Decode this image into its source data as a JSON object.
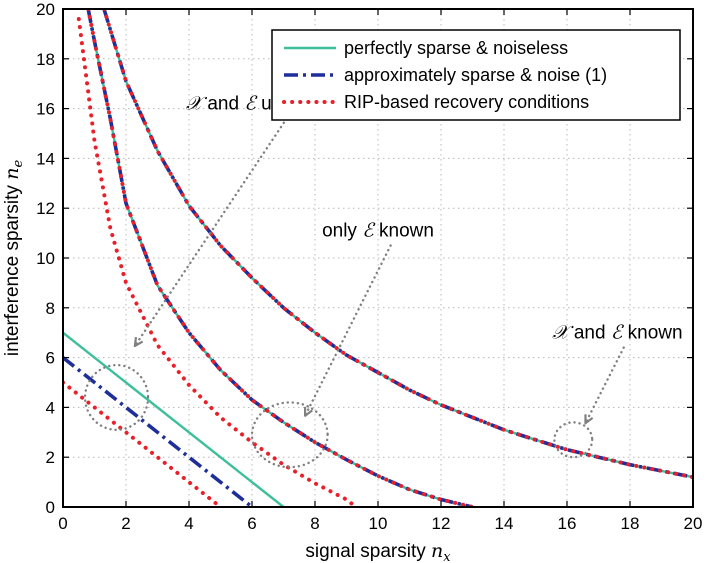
{
  "chart_data": {
    "type": "line",
    "xlabel": "signal sparsity",
    "xlabel_symbol": "n",
    "xlabel_sub": "x",
    "ylabel": "interference sparsity",
    "ylabel_symbol": "n",
    "ylabel_sub": "e",
    "xlim": [
      0,
      20
    ],
    "ylim": [
      0,
      20
    ],
    "xticks": [
      0,
      2,
      4,
      6,
      8,
      10,
      12,
      14,
      16,
      18,
      20
    ],
    "yticks": [
      0,
      2,
      4,
      6,
      8,
      10,
      12,
      14,
      16,
      18,
      20
    ],
    "grid": true,
    "legend_position": "top-right",
    "legend": [
      {
        "label": "perfectly sparse & noiseless",
        "style": "solid",
        "color": "#3cbf9a"
      },
      {
        "label": "approximately sparse & noise (1)",
        "style": "dashdot",
        "color": "#1f2f9a"
      },
      {
        "label": "RIP-based recovery conditions",
        "style": "dotted",
        "color": "#e8202a"
      }
    ],
    "series": [
      {
        "name": "perfectly sparse & noiseless",
        "style": "solid",
        "color": "#3cbf9a",
        "x": [
          0,
          7
        ],
        "y": [
          7,
          0
        ]
      },
      {
        "name": "perfectly sparse & noiseless",
        "style": "solid",
        "color": "#3cbf9a",
        "x": [
          0.8,
          1,
          1.5,
          2,
          3,
          4,
          5,
          6,
          7,
          8,
          9,
          10,
          11,
          12,
          13
        ],
        "y": [
          20,
          18.7,
          15.6,
          12.2,
          8.9,
          7.0,
          5.5,
          4.3,
          3.4,
          2.6,
          1.9,
          1.25,
          0.7,
          0.3,
          0
        ]
      },
      {
        "name": "perfectly sparse & noiseless",
        "style": "solid",
        "color": "#3cbf9a",
        "x": [
          1.3,
          2,
          3,
          4,
          5,
          6,
          7,
          8,
          9,
          10,
          11,
          12,
          13,
          14,
          15,
          16,
          17,
          18,
          19,
          20
        ],
        "y": [
          20,
          17.1,
          14.3,
          12.1,
          10.5,
          9.2,
          8.0,
          7.0,
          6.1,
          5.4,
          4.7,
          4.1,
          3.6,
          3.1,
          2.7,
          2.3,
          2.0,
          1.7,
          1.45,
          1.2
        ]
      },
      {
        "name": "approximately sparse & noise (1)",
        "style": "dashdot",
        "color": "#1f2f9a",
        "x": [
          0,
          6
        ],
        "y": [
          6,
          0
        ]
      },
      {
        "name": "approximately sparse & noise (1)",
        "style": "dashdot",
        "color": "#1f2f9a",
        "x": [
          0.8,
          1,
          1.5,
          2,
          3,
          4,
          5,
          6,
          7,
          8,
          9,
          10,
          11,
          12,
          13
        ],
        "y": [
          20,
          18.7,
          15.6,
          12.2,
          8.9,
          7.0,
          5.5,
          4.3,
          3.4,
          2.6,
          1.9,
          1.25,
          0.7,
          0.3,
          0
        ]
      },
      {
        "name": "approximately sparse & noise (1)",
        "style": "dashdot",
        "color": "#1f2f9a",
        "x": [
          1.3,
          2,
          3,
          4,
          5,
          6,
          7,
          8,
          9,
          10,
          11,
          12,
          13,
          14,
          15,
          16,
          17,
          18,
          19,
          20
        ],
        "y": [
          20,
          17.1,
          14.3,
          12.1,
          10.5,
          9.2,
          8.0,
          7.0,
          6.1,
          5.4,
          4.7,
          4.1,
          3.6,
          3.1,
          2.7,
          2.3,
          2.0,
          1.7,
          1.45,
          1.2
        ]
      },
      {
        "name": "RIP-based recovery conditions",
        "style": "dotted",
        "color": "#e8202a",
        "x": [
          0,
          5
        ],
        "y": [
          5,
          0
        ]
      },
      {
        "name": "RIP-based recovery conditions",
        "style": "dotted",
        "color": "#e8202a",
        "x": [
          0.5,
          1,
          1.5,
          2,
          3,
          4,
          5,
          6,
          7,
          8,
          9,
          9.3
        ],
        "y": [
          19.6,
          14.7,
          11.2,
          9.0,
          6.5,
          4.9,
          3.6,
          2.6,
          1.7,
          0.95,
          0.3,
          0
        ]
      },
      {
        "name": "RIP-based recovery conditions",
        "style": "dotted",
        "color": "#e8202a",
        "x": [
          0.8,
          1,
          1.5,
          2,
          3,
          4,
          5,
          6,
          7,
          8,
          9,
          10,
          11,
          12,
          13
        ],
        "y": [
          20,
          18.7,
          15.6,
          12.2,
          8.9,
          7.0,
          5.5,
          4.3,
          3.4,
          2.6,
          1.9,
          1.25,
          0.7,
          0.3,
          0
        ]
      },
      {
        "name": "RIP-based recovery conditions",
        "style": "dotted",
        "color": "#e8202a",
        "x": [
          1.3,
          2,
          3,
          4,
          5,
          6,
          7,
          8,
          9,
          10,
          11,
          12,
          13,
          14,
          15,
          16,
          17,
          18,
          19,
          20
        ],
        "y": [
          20,
          17.1,
          14.3,
          12.1,
          10.5,
          9.2,
          8.0,
          7.0,
          6.1,
          5.4,
          4.7,
          4.1,
          3.6,
          3.1,
          2.7,
          2.3,
          2.0,
          1.7,
          1.45,
          1.2
        ]
      }
    ],
    "annotations": [
      {
        "text_pre": "",
        "sym1": "X",
        "mid": " and ",
        "sym2": "E",
        "post": " unknown",
        "text_x": 6.3,
        "text_y": 16.2,
        "arrow_from": [
          7.1,
          15.6
        ],
        "arrow_to": [
          2.3,
          6.5
        ],
        "circle_center": [
          1.7,
          4.4
        ],
        "circle_r": [
          1.0,
          1.3
        ]
      },
      {
        "text_pre": "only ",
        "sym1": "E",
        "mid": " known",
        "sym2": "",
        "post": "",
        "text_x": 10.0,
        "text_y": 11.1,
        "arrow_from": [
          10.4,
          10.5
        ],
        "arrow_to": [
          7.7,
          3.7
        ],
        "circle_center": [
          7.2,
          2.9
        ],
        "circle_r": [
          1.2,
          1.3
        ]
      },
      {
        "text_pre": "",
        "sym1": "X",
        "mid": " and ",
        "sym2": "E",
        "post": " known",
        "text_x": 17.6,
        "text_y": 7.0,
        "arrow_from": [
          17.8,
          6.4
        ],
        "arrow_to": [
          16.6,
          3.4
        ],
        "circle_center": [
          16.2,
          2.7
        ],
        "circle_r": [
          0.6,
          0.7
        ]
      }
    ]
  }
}
